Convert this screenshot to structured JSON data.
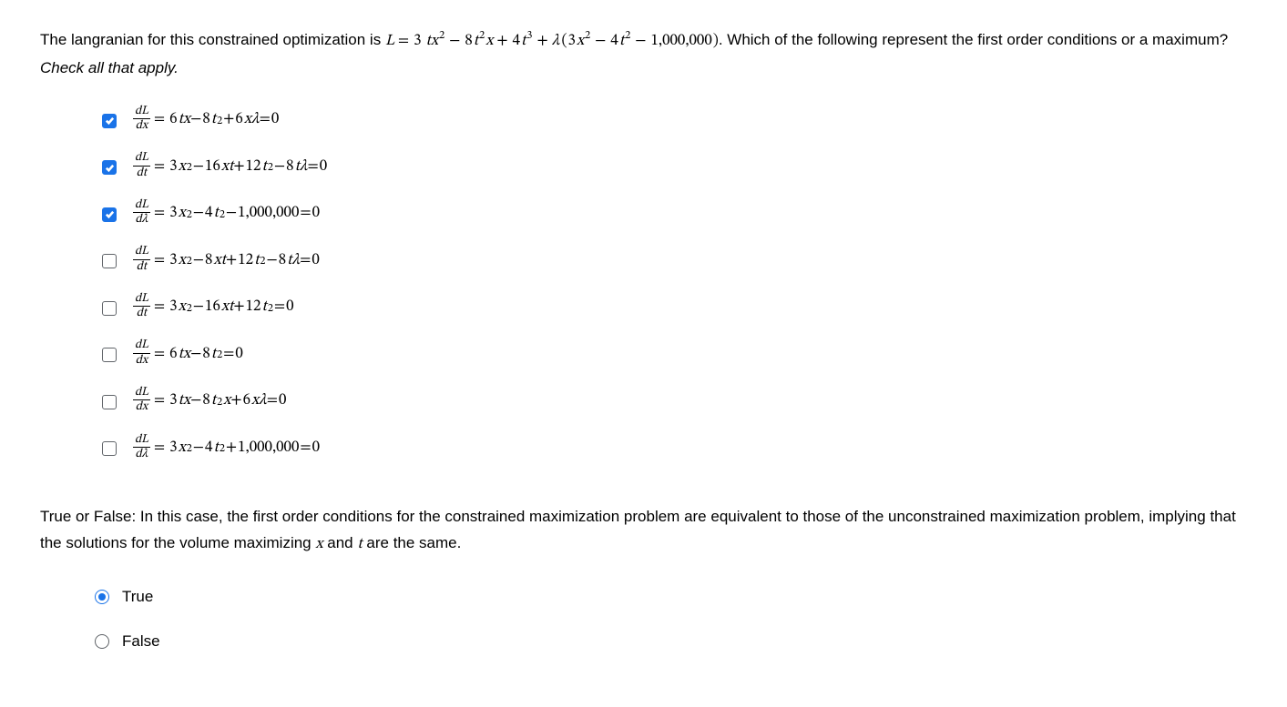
{
  "question1": {
    "text_prefix": "The langranian for this constrained optimization is ",
    "lagrangian_html": "L <span class='op'>=</span> <span class='num'>3</span> tx<sup><span class='num'>2</span></sup> <span class='op'>−</span> <span class='num'>8</span>t<sup><span class='num'>2</span></sup>x <span class='op'>+</span> <span class='num'>4</span>t<sup><span class='num'>3</span></sup> <span class='op'>+</span> λ&thinsp;<span class='op'>(</span><span class='num'>3</span>x<sup><span class='num'>2</span></sup> <span class='op'>−</span> <span class='num'>4</span>t<sup><span class='num'>2</span></sup> <span class='op'>−</span> <span class='num'>1,000,000</span><span class='op'>)</span>",
    "text_suffix": ". Which of the following represent the first order conditions or a maximum? ",
    "hint": "Check all that apply."
  },
  "options": [
    {
      "deriv_top": "dL",
      "deriv_bot": "dx",
      "expr_html": "<span class='num'>6</span>tx <span class='op'>−</span> <span class='num'>8</span>t<sup><span class='num'>2</span></sup> <span class='op'>+</span> <span class='num'>6</span>xλ <span class='op'>=</span> <span class='num'>0</span>",
      "checked": true
    },
    {
      "deriv_top": "dL",
      "deriv_bot": "dt",
      "expr_html": "<span class='num'>3</span>x<sup><span class='num'>2</span></sup> <span class='op'>−</span> <span class='num'>16</span>xt <span class='op'>+</span> <span class='num'>12</span>t<sup><span class='num'>2</span></sup> <span class='op'>−</span> <span class='num'>8</span>tλ <span class='op'>=</span> <span class='num'>0</span>",
      "checked": true
    },
    {
      "deriv_top": "dL",
      "deriv_bot": "dλ",
      "expr_html": "<span class='num'>3</span>x<sup><span class='num'>2</span></sup> <span class='op'>−</span> <span class='num'>4</span>t<sup><span class='num'>2</span></sup> <span class='op'>−</span> <span class='num'>1,000,000</span> <span class='op'>=</span> <span class='num'>0</span>",
      "checked": true
    },
    {
      "deriv_top": "dL",
      "deriv_bot": "dt",
      "expr_html": "<span class='num'>3</span>x<sup><span class='num'>2</span></sup> <span class='op'>−</span> <span class='num'>8</span>xt <span class='op'>+</span> <span class='num'>12</span>t<sup><span class='num'>2</span></sup> <span class='op'>−</span> <span class='num'>8</span>tλ <span class='op'>=</span> <span class='num'>0</span>",
      "checked": false
    },
    {
      "deriv_top": "dL",
      "deriv_bot": "dt",
      "expr_html": "<span class='num'>3</span>x<sup><span class='num'>2</span></sup> <span class='op'>−</span> <span class='num'>16</span>xt <span class='op'>+</span> <span class='num'>12</span>t<sup><span class='num'>2</span></sup> <span class='op'>=</span> <span class='num'>0</span>",
      "checked": false
    },
    {
      "deriv_top": "dL",
      "deriv_bot": "dx",
      "expr_html": "<span class='num'>6</span>tx <span class='op'>−</span> <span class='num'>8</span>t<sup><span class='num'>2</span></sup> <span class='op'>=</span> <span class='num'>0</span>",
      "checked": false
    },
    {
      "deriv_top": "dL",
      "deriv_bot": "dx",
      "expr_html": "<span class='num'>3</span>tx <span class='op'>−</span> <span class='num'>8</span>t<sup><span class='num'>2</span></sup>x <span class='op'>+</span> <span class='num'>6</span>xλ <span class='op'>=</span> <span class='num'>0</span>",
      "checked": false
    },
    {
      "deriv_top": "dL",
      "deriv_bot": "dλ",
      "expr_html": "<span class='num'>3</span>x<sup><span class='num'>2</span></sup> <span class='op'>−</span> <span class='num'>4</span>t<sup><span class='num'>2</span></sup> <span class='op'>+</span> <span class='num'>1,000,000</span> <span class='op'>=</span> <span class='num'>0</span>",
      "checked": false
    }
  ],
  "question2": {
    "text_prefix": "True or False: In this case, the first order conditions for the constrained maximization problem are equivalent to those of the unconstrained maximization problem, implying that the solutions for the volume maximizing ",
    "var1": "x",
    "mid": " and ",
    "var2": "t",
    "text_suffix": " are the same."
  },
  "radios": {
    "true_label": "True",
    "false_label": "False",
    "selected": "true"
  },
  "colors": {
    "accent": "#1a73e8",
    "border": "#5f6368",
    "text": "#000000",
    "background": "#ffffff"
  }
}
